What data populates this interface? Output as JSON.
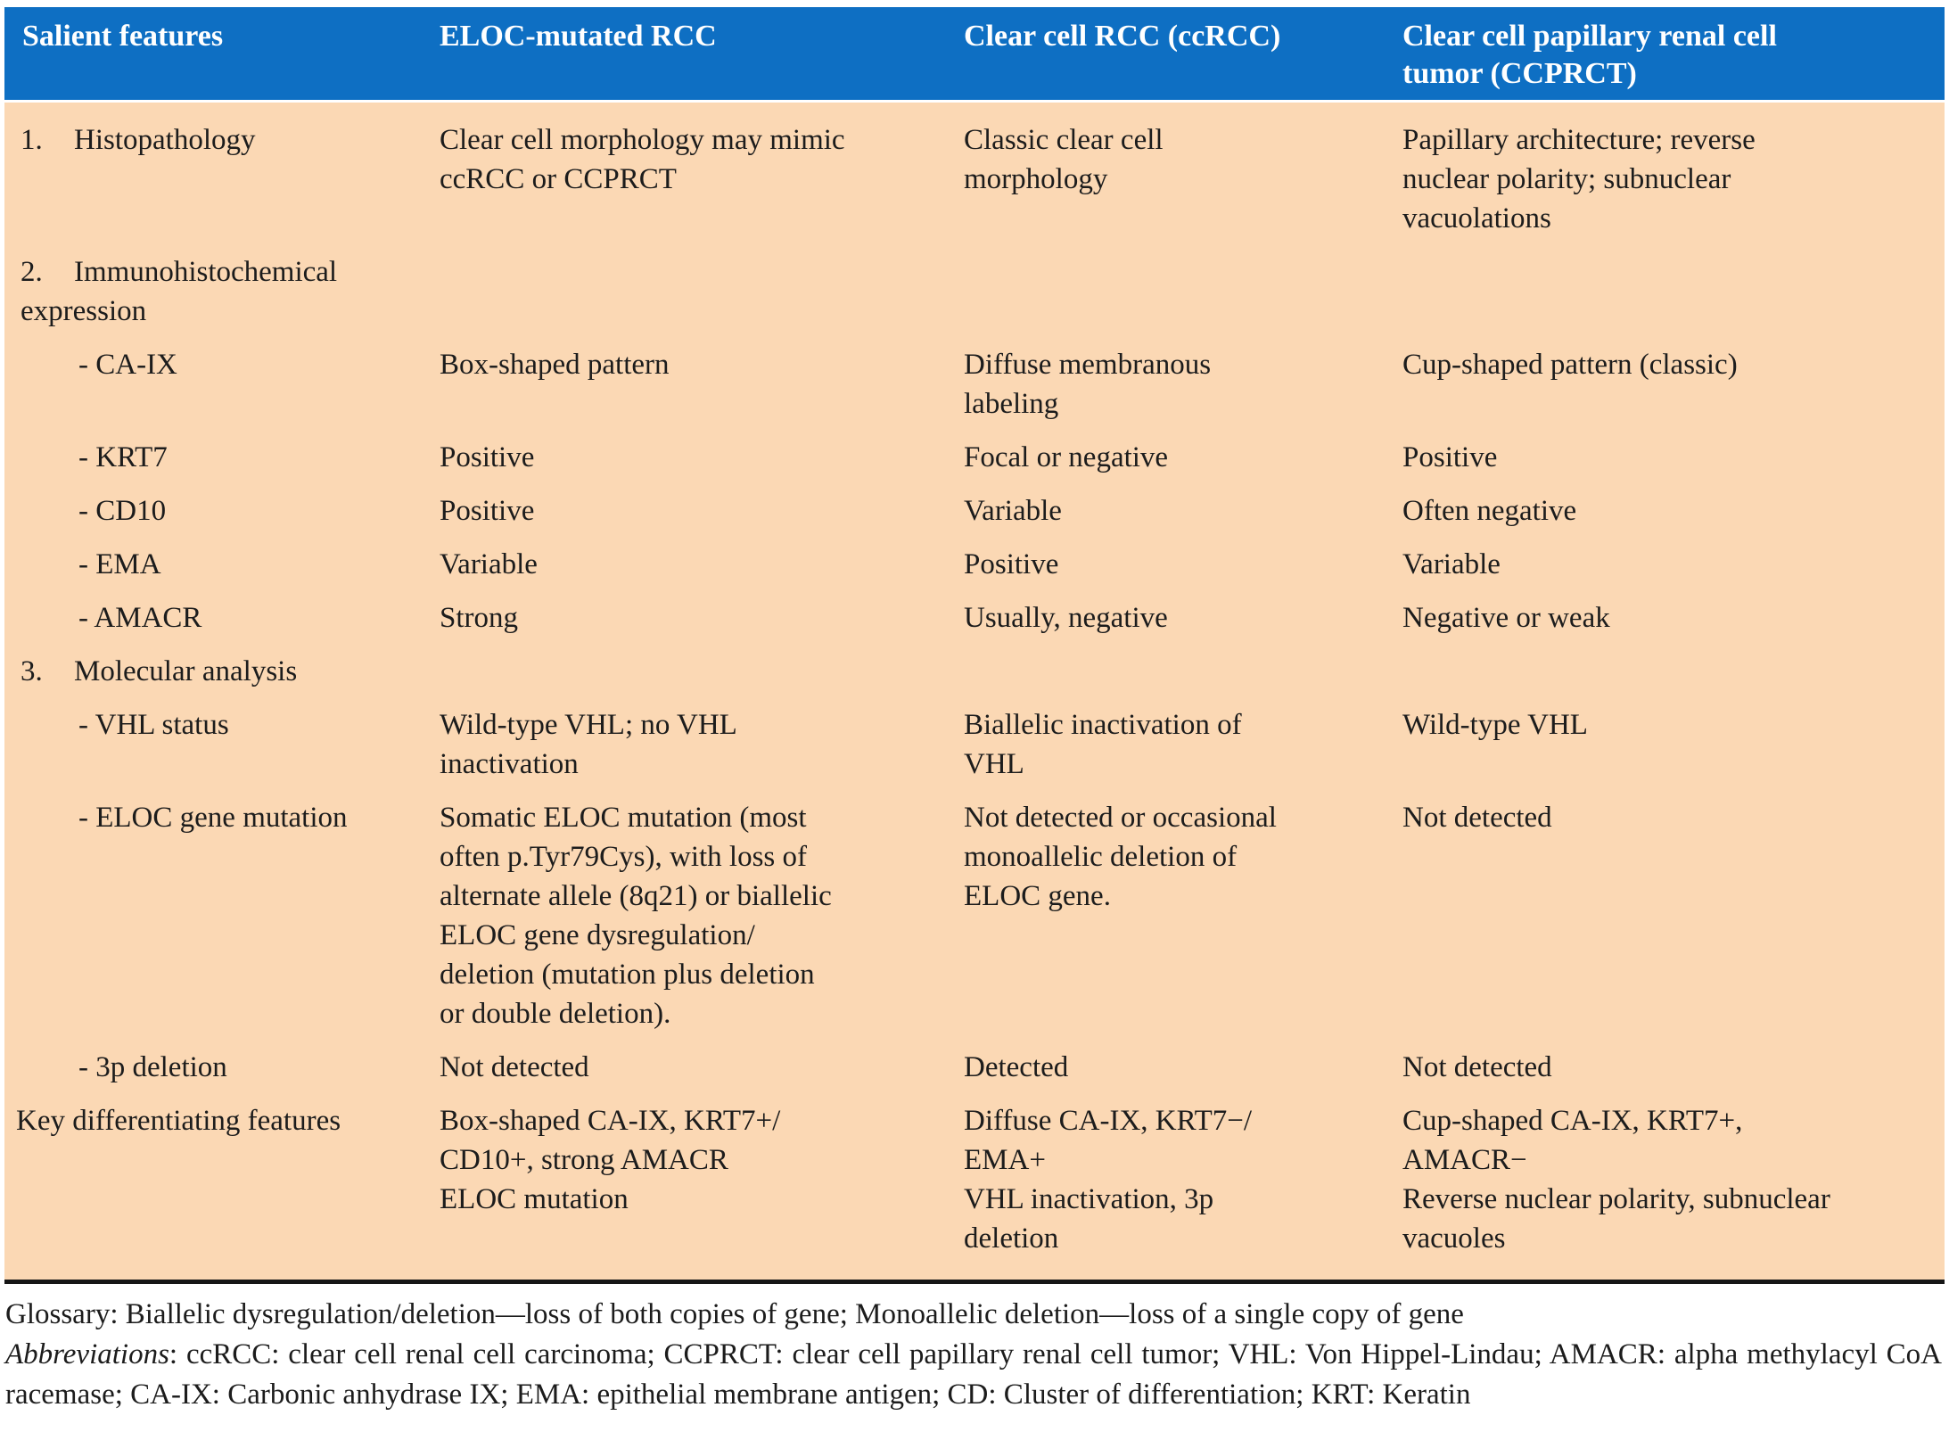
{
  "table": {
    "header": {
      "bg_color": "#0e6fc3",
      "text_color": "#ffffff",
      "columns": [
        {
          "label": "Salient features"
        },
        {
          "label": "ELOC-mutated RCC"
        },
        {
          "label": "Clear cell RCC (ccRCC)"
        },
        {
          "label": "Clear cell papillary renal cell\ntumor (CCPRCT)"
        }
      ]
    },
    "body_bg_color": "#fbd8b4",
    "rows": [
      {
        "num": "1.",
        "feature": "Histopathology",
        "eloc": "Clear cell morphology may mimic\nccRCC or CCPRCT",
        "ccrcc": "Classic clear cell\nmorphology",
        "ccprct": "Papillary architecture; reverse\nnuclear polarity; subnuclear\nvacuolations"
      },
      {
        "num": "2.",
        "feature": "Immunohistochemical expression",
        "eloc": "",
        "ccrcc": "",
        "ccprct": ""
      },
      {
        "num": "",
        "feature": "- CA-IX",
        "eloc": "Box-shaped pattern",
        "ccrcc": "Diffuse membranous\nlabeling",
        "ccprct": "Cup-shaped pattern (classic)"
      },
      {
        "num": "",
        "feature": "- KRT7",
        "eloc": "Positive",
        "ccrcc": "Focal or negative",
        "ccprct": "Positive"
      },
      {
        "num": "",
        "feature": "- CD10",
        "eloc": "Positive",
        "ccrcc": "Variable",
        "ccprct": "Often negative"
      },
      {
        "num": "",
        "feature": "- EMA",
        "eloc": "Variable",
        "ccrcc": "Positive",
        "ccprct": "Variable"
      },
      {
        "num": "",
        "feature": "- AMACR",
        "eloc": "Strong",
        "ccrcc": "Usually, negative",
        "ccprct": "Negative or weak"
      },
      {
        "num": "3.",
        "feature": "Molecular analysis",
        "eloc": "",
        "ccrcc": "",
        "ccprct": ""
      },
      {
        "num": "",
        "feature": "- VHL status",
        "eloc": "Wild-type VHL; no VHL\ninactivation",
        "ccrcc": "Biallelic inactivation of\nVHL",
        "ccprct": "Wild-type VHL"
      },
      {
        "num": "",
        "feature": "- ELOC gene mutation",
        "eloc": "Somatic ELOC mutation (most\noften p.Tyr79Cys), with loss of\nalternate allele (8q21) or biallelic\nELOC gene dysregulation/\ndeletion (mutation plus deletion\nor double deletion).",
        "ccrcc": "Not detected or occasional\nmonoallelic deletion of\nELOC gene.",
        "ccprct": "Not detected"
      },
      {
        "num": "",
        "feature": "- 3p deletion",
        "eloc": "Not detected",
        "ccrcc": "Detected",
        "ccprct": "Not detected"
      },
      {
        "num": "",
        "feature": "Key differentiating features",
        "eloc": "Box-shaped CA-IX, KRT7+/\nCD10+, strong AMACR\nELOC mutation",
        "ccrcc": "Diffuse CA-IX, KRT7−/\nEMA+\nVHL inactivation, 3p\ndeletion",
        "ccprct": "Cup-shaped CA-IX, KRT7+,\nAMACR−\nReverse nuclear polarity, subnuclear\nvacuoles"
      }
    ]
  },
  "footer": {
    "glossary": "Glossary: Biallelic dysregulation/deletion—loss of both copies of gene; Monoallelic deletion—loss of a single copy of gene",
    "abbreviations_label": "Abbreviations",
    "abbreviations_rest": ": ccRCC: clear cell renal cell carcinoma; CCPRCT: clear cell papillary renal cell tumor; VHL: Von Hippel-Lindau; AMACR: alpha methylacyl CoA racemase; CA-IX: Carbonic anhydrase IX; EMA: epithelial membrane antigen; CD: Cluster of differentiation; KRT: Keratin"
  }
}
